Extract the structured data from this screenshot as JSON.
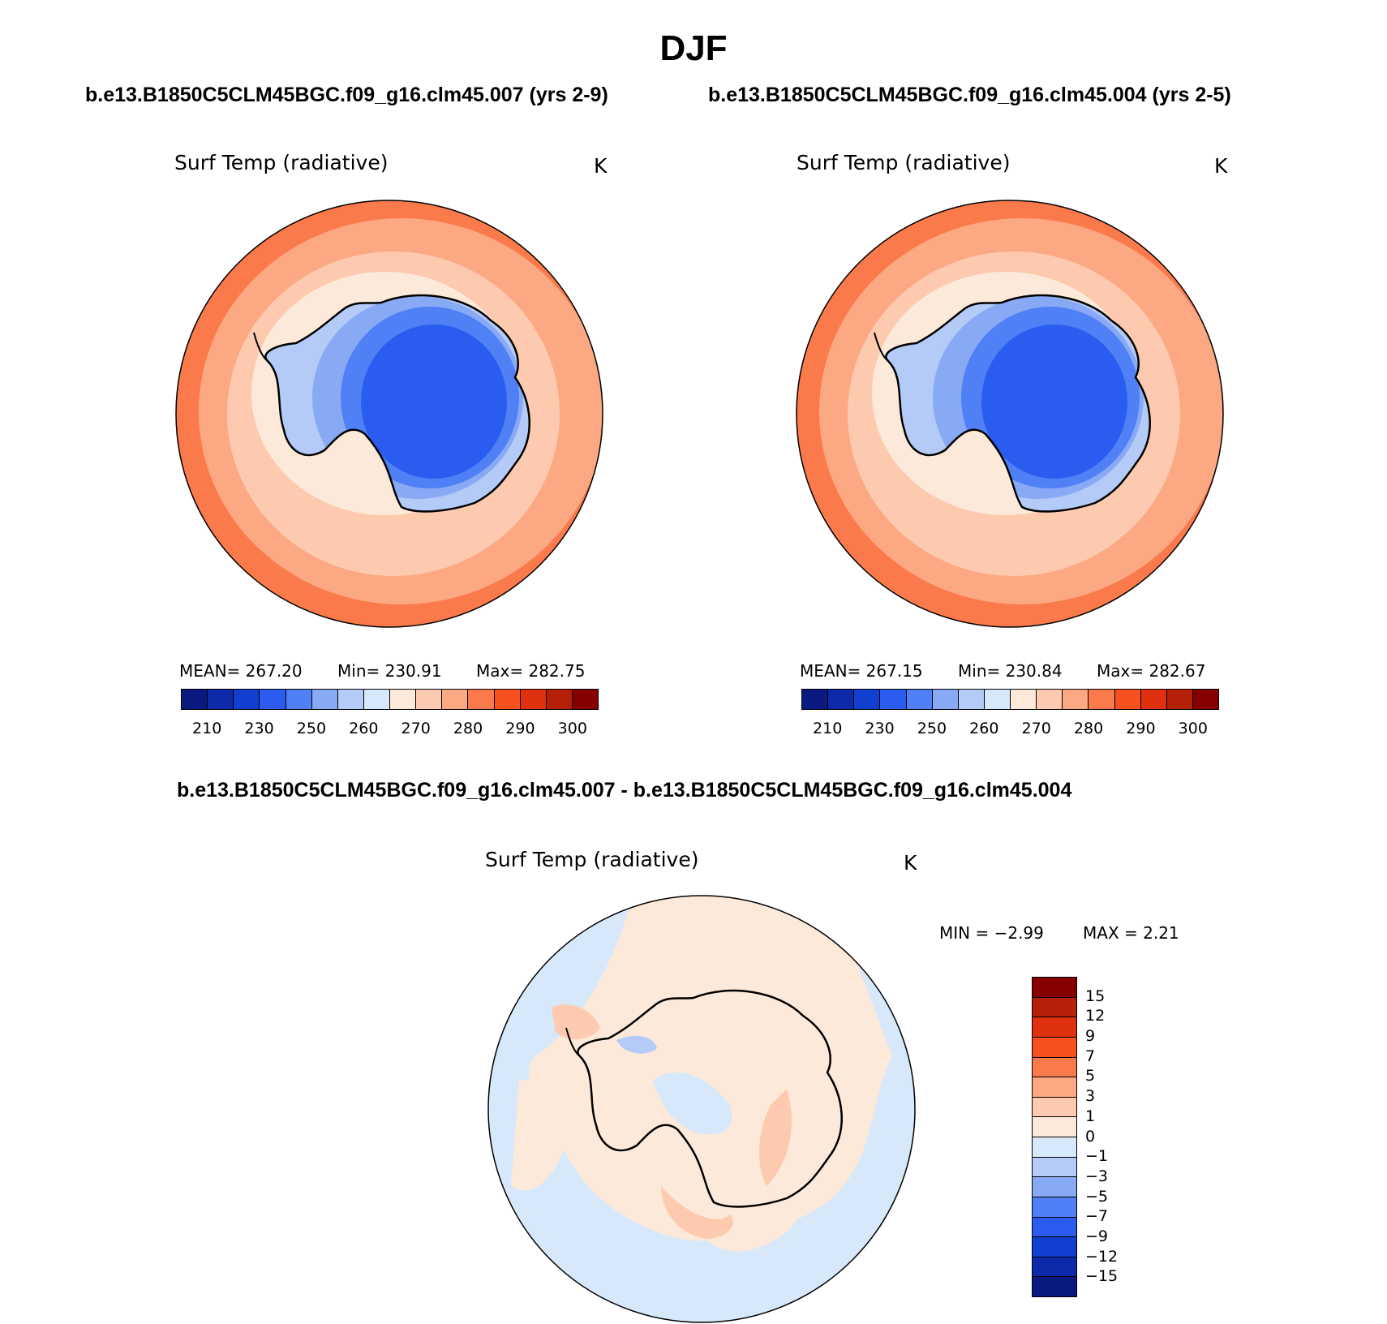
{
  "season": "DJF",
  "panels": [
    {
      "case_title": "b.e13.B1850C5CLM45BGC.f09_g16.clm45.007 (yrs 2-9)",
      "variable": "Surf Temp (radiative)",
      "units": "K",
      "stats": {
        "mean": "MEAN= 267.20",
        "min": "Min= 230.91",
        "max": "Max= 282.75"
      }
    },
    {
      "case_title": "b.e13.B1850C5CLM45BGC.f09_g16.clm45.004 (yrs 2-5)",
      "variable": "Surf Temp (radiative)",
      "units": "K",
      "stats": {
        "mean": "MEAN= 267.15",
        "min": "Min= 230.84",
        "max": "Max= 282.67"
      }
    }
  ],
  "diff_panel": {
    "case_title": "b.e13.B1850C5CLM45BGC.f09_g16.clm45.007 - b.e13.B1850C5CLM45BGC.f09_g16.clm45.004",
    "variable": "Surf Temp (radiative)",
    "units": "K",
    "stats": {
      "min": "MIN =   −2.99",
      "max": "MAX =    2.21"
    }
  },
  "colorbar_abs": {
    "tick_labels": [
      "210",
      "230",
      "250",
      "260",
      "270",
      "280",
      "290",
      "300"
    ],
    "colors": [
      "#0a1a80",
      "#0c2aaa",
      "#1140d0",
      "#2a5cf0",
      "#4f80f5",
      "#88aaf5",
      "#b4cbf7",
      "#d7e8fb",
      "#fde9d9",
      "#fdcab0",
      "#fca883",
      "#fb7a4c",
      "#f7511f",
      "#df3010",
      "#b52008",
      "#860000"
    ]
  },
  "colorbar_diff": {
    "tick_labels": [
      "15",
      "12",
      "9",
      "7",
      "5",
      "3",
      "1",
      "0",
      "−1",
      "−3",
      "−5",
      "−7",
      "−9",
      "−12",
      "−15"
    ],
    "colors": [
      "#860000",
      "#b52008",
      "#df3010",
      "#f7511f",
      "#fb7a4c",
      "#fca883",
      "#fdcab0",
      "#fde9d9",
      "#d7e8fb",
      "#b4cbf7",
      "#88aaf5",
      "#4f80f5",
      "#2a5cf0",
      "#1140d0",
      "#0c2aaa",
      "#0a1a80"
    ]
  }
}
